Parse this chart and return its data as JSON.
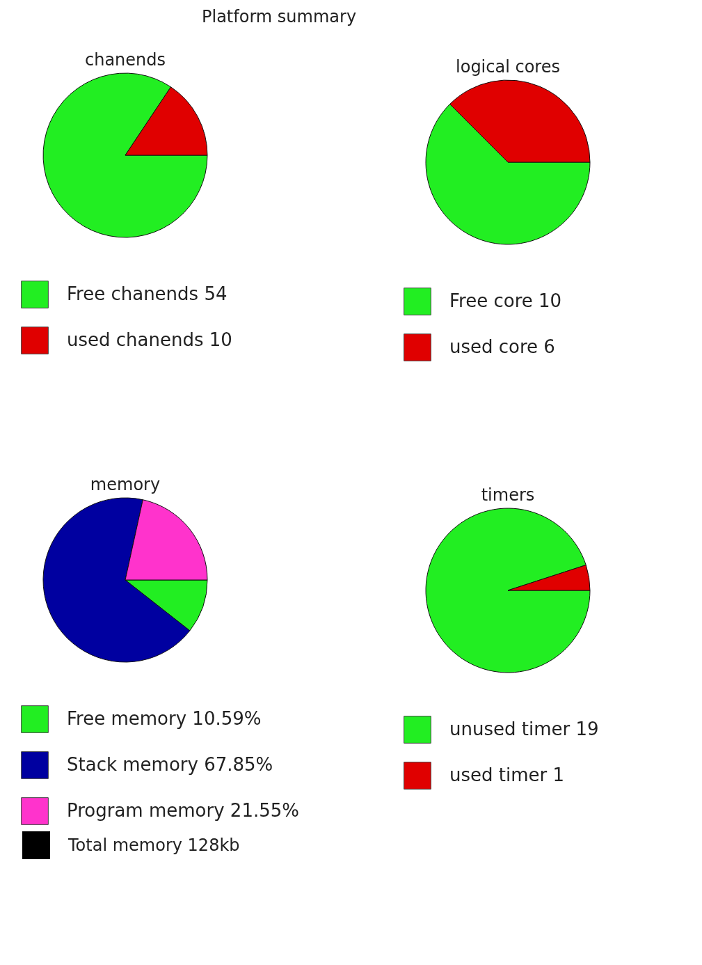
{
  "chart_data": [
    {
      "type": "other",
      "title": "Platform summary"
    },
    {
      "type": "pie",
      "title": "chanends",
      "categories": [
        "Free chanends 54",
        "used chanends 10"
      ],
      "values": [
        54,
        10
      ],
      "colors": [
        "#22ee22",
        "#e00000"
      ],
      "legend": "bottom"
    },
    {
      "type": "pie",
      "title": "logical cores",
      "categories": [
        "Free core 10",
        "used core 6"
      ],
      "values": [
        10,
        6
      ],
      "colors": [
        "#22ee22",
        "#e00000"
      ],
      "legend": "bottom"
    },
    {
      "type": "pie",
      "title": "memory",
      "categories": [
        "Free memory 10.59%",
        "Stack memory 67.85%",
        "Program memory 21.55%"
      ],
      "values": [
        10.59,
        67.85,
        21.55
      ],
      "colors": [
        "#22ee22",
        "#0000a0",
        "#ff33cc"
      ],
      "legend": "bottom",
      "annotations": [
        "Total memory 128kb"
      ]
    },
    {
      "type": "pie",
      "title": "timers",
      "categories": [
        "unused timer 19",
        "used timer 1"
      ],
      "values": [
        19,
        1
      ],
      "colors": [
        "#22ee22",
        "#e00000"
      ],
      "legend": "bottom"
    }
  ]
}
